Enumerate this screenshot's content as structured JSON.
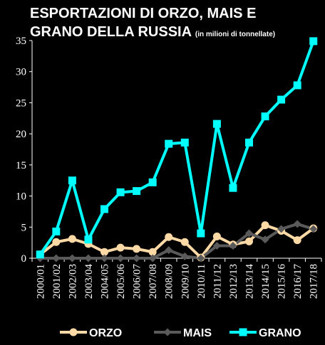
{
  "title_line1": "ESPORTAZIONI DI ORZO, MAIS E",
  "title_line2": "GRANO DELLA RUSSIA",
  "subtitle": "(in milioni di tonnellate)",
  "colors": {
    "background": "#000000",
    "orzo": "#fcd9a5",
    "mais": "#5a5a5a",
    "grano": "#00ffff",
    "text": "#ffffff"
  },
  "chart_data": {
    "type": "line",
    "title": "ESPORTAZIONI DI ORZO, MAIS E GRANO DELLA RUSSIA",
    "subtitle": "(in milioni di tonnellate)",
    "xlabel": "",
    "ylabel": "",
    "ylim": [
      0,
      35
    ],
    "yticks": [
      0,
      5,
      10,
      15,
      20,
      25,
      30,
      35
    ],
    "grid": false,
    "legend_position": "bottom",
    "categories": [
      "2000/01",
      "2001/02",
      "2002/03",
      "2003/04",
      "2004/05",
      "2005/06",
      "2006/07",
      "2007/08",
      "2008/09",
      "2009/10",
      "2010/11",
      "2011/12",
      "2012/13",
      "2013/14",
      "2014/15",
      "2015/16",
      "2016/17",
      "2017/18"
    ],
    "series": [
      {
        "name": "ORZO",
        "color": "#fcd9a5",
        "marker": "circle",
        "values": [
          0.6,
          2.6,
          3.1,
          2.3,
          1.0,
          1.7,
          1.5,
          1.0,
          3.4,
          2.6,
          0.1,
          3.5,
          2.2,
          2.7,
          5.3,
          4.4,
          2.9,
          4.8
        ]
      },
      {
        "name": "MAIS",
        "color": "#5a5a5a",
        "marker": "diamond",
        "values": [
          0.0,
          0.0,
          0.0,
          0.0,
          0.0,
          0.0,
          0.0,
          0.0,
          1.3,
          0.3,
          0.0,
          2.0,
          2.0,
          4.0,
          3.0,
          4.7,
          5.5,
          4.7
        ]
      },
      {
        "name": "GRANO",
        "color": "#00ffff",
        "marker": "square",
        "values": [
          0.6,
          4.3,
          12.5,
          3.0,
          7.9,
          10.6,
          10.8,
          12.2,
          18.4,
          18.6,
          4.0,
          21.6,
          11.3,
          18.6,
          22.8,
          25.5,
          27.8,
          34.9
        ]
      }
    ]
  }
}
